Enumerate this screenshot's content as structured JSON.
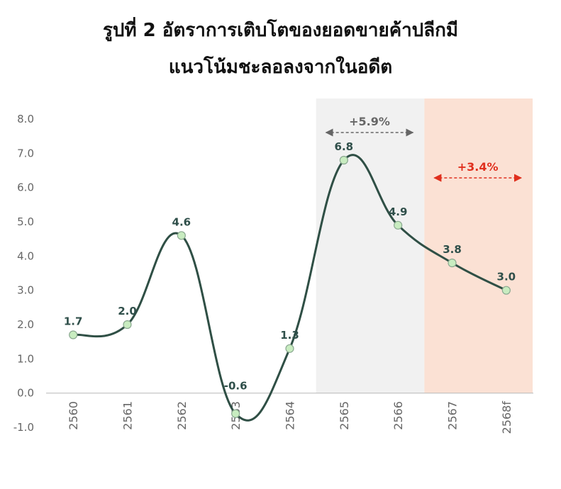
{
  "chart_data": {
    "type": "line",
    "title_line1": "รูปที่ 2 อัตราการเติบโตของยอดขายค้าปลีกมี",
    "title_line2": "แนวโน้มชะลอลงจากในอดีต",
    "categories": [
      "2560",
      "2561",
      "2562",
      "2563",
      "2564",
      "2565",
      "2566",
      "2567",
      "2568f"
    ],
    "series": [
      {
        "values": [
          1.7,
          2.0,
          4.6,
          -0.6,
          1.3,
          6.8,
          4.9,
          3.8,
          3.0
        ],
        "color": "#2f4f45"
      }
    ],
    "data_labels": [
      "1.7",
      "2.0",
      "4.6",
      "-0.6",
      "1.3",
      "6.8",
      "4.9",
      "3.8",
      "3.0"
    ],
    "y_ticks": [
      "8.0",
      "7.0",
      "6.0",
      "5.0",
      "4.0",
      "3.0",
      "2.0",
      "1.0",
      "0.0",
      "-1.0"
    ],
    "ylim": [
      -1,
      8
    ],
    "grid": false,
    "annotations": [
      {
        "text": "+5.9%",
        "from": "2565",
        "to": "2566",
        "color": "#666666",
        "band_color": "#f1f1f1"
      },
      {
        "text": "+3.4%",
        "from": "2567",
        "to": "2568f",
        "color": "#e0301e",
        "band_color": "#fbe1d4"
      }
    ],
    "marker_fill": "#c8ecc0"
  }
}
